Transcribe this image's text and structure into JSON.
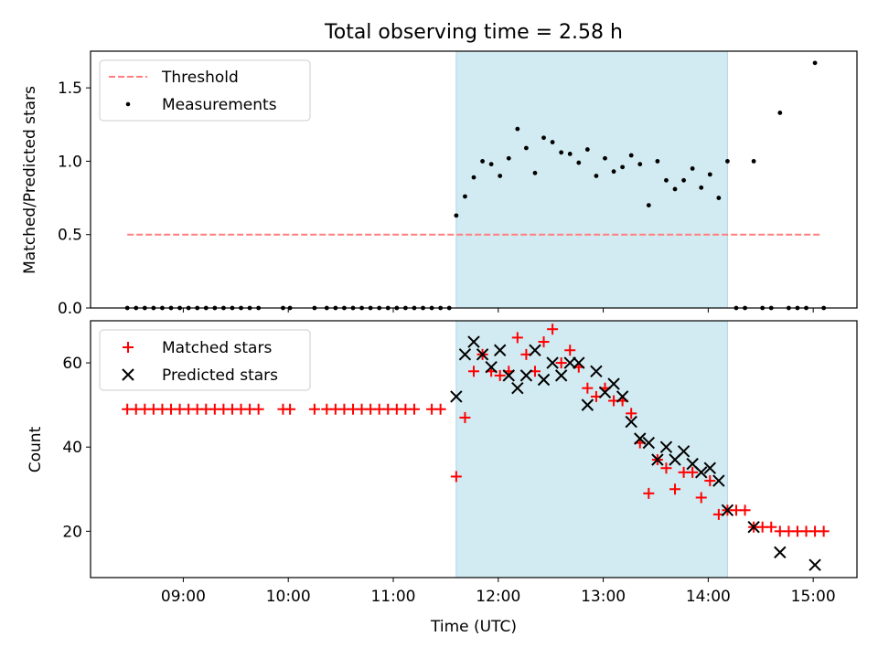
{
  "figure": {
    "title": "Total observing time = 2.58 h",
    "xlabel": "Time (UTC)"
  },
  "chart_data": [
    {
      "type": "scatter",
      "ylabel": "Matched/Predicted stars",
      "ylim": [
        0,
        1.75
      ],
      "xlim": [
        "08:07",
        "15:25"
      ],
      "yticks": [
        0.0,
        0.5,
        1.0,
        1.5
      ],
      "ytick_labels": [
        "0.0",
        "0.5",
        "1.0",
        "1.5"
      ],
      "shaded_interval": [
        "11:36",
        "14:11"
      ],
      "shaded_color": "#add8e6",
      "legend": {
        "position": "upper-left",
        "entries": [
          "Threshold",
          "Measurements"
        ]
      },
      "threshold": {
        "name": "Threshold",
        "value": 0.5,
        "x_range": [
          "08:28",
          "15:04"
        ],
        "color": "#ff7f7f",
        "style": "dashed"
      },
      "series": [
        {
          "name": "Measurements",
          "marker": "dot",
          "color": "#000000",
          "points": [
            [
              "08:28",
              0
            ],
            [
              "08:33",
              0
            ],
            [
              "08:38",
              0
            ],
            [
              "08:43",
              0
            ],
            [
              "08:48",
              0
            ],
            [
              "08:53",
              0
            ],
            [
              "08:58",
              0
            ],
            [
              "09:03",
              0
            ],
            [
              "09:08",
              0
            ],
            [
              "09:13",
              0
            ],
            [
              "09:18",
              0
            ],
            [
              "09:23",
              0
            ],
            [
              "09:28",
              0
            ],
            [
              "09:33",
              0
            ],
            [
              "09:38",
              0
            ],
            [
              "09:43",
              0
            ],
            [
              "09:57",
              0
            ],
            [
              "10:01",
              0
            ],
            [
              "10:15",
              0
            ],
            [
              "10:22",
              0
            ],
            [
              "10:27",
              0
            ],
            [
              "10:32",
              0
            ],
            [
              "10:37",
              0
            ],
            [
              "10:42",
              0
            ],
            [
              "10:47",
              0
            ],
            [
              "10:52",
              0
            ],
            [
              "10:57",
              0
            ],
            [
              "11:02",
              0
            ],
            [
              "11:07",
              0
            ],
            [
              "11:12",
              0
            ],
            [
              "11:17",
              0
            ],
            [
              "11:22",
              0
            ],
            [
              "11:27",
              0
            ],
            [
              "11:32",
              0
            ],
            [
              "11:36",
              0.63
            ],
            [
              "11:41",
              0.76
            ],
            [
              "11:46",
              0.89
            ],
            [
              "11:51",
              1.0
            ],
            [
              "11:56",
              0.98
            ],
            [
              "12:01",
              0.9
            ],
            [
              "12:06",
              1.02
            ],
            [
              "12:11",
              1.22
            ],
            [
              "12:16",
              1.09
            ],
            [
              "12:21",
              0.92
            ],
            [
              "12:26",
              1.16
            ],
            [
              "12:31",
              1.13
            ],
            [
              "12:36",
              1.06
            ],
            [
              "12:41",
              1.05
            ],
            [
              "12:46",
              0.99
            ],
            [
              "12:51",
              1.08
            ],
            [
              "12:56",
              0.9
            ],
            [
              "13:01",
              1.02
            ],
            [
              "13:06",
              0.93
            ],
            [
              "13:11",
              0.96
            ],
            [
              "13:16",
              1.04
            ],
            [
              "13:21",
              0.98
            ],
            [
              "13:26",
              0.7
            ],
            [
              "13:31",
              1.0
            ],
            [
              "13:36",
              0.87
            ],
            [
              "13:41",
              0.81
            ],
            [
              "13:46",
              0.87
            ],
            [
              "13:51",
              0.95
            ],
            [
              "13:56",
              0.82
            ],
            [
              "14:01",
              0.91
            ],
            [
              "14:06",
              0.75
            ],
            [
              "14:11",
              1.0
            ],
            [
              "14:16",
              0
            ],
            [
              "14:21",
              0
            ],
            [
              "14:26",
              1.0
            ],
            [
              "14:31",
              0
            ],
            [
              "14:36",
              0
            ],
            [
              "14:41",
              1.33
            ],
            [
              "14:46",
              0
            ],
            [
              "14:51",
              0
            ],
            [
              "14:56",
              0
            ],
            [
              "15:01",
              1.67
            ],
            [
              "15:06",
              0
            ]
          ]
        }
      ]
    },
    {
      "type": "scatter",
      "ylabel": "Count",
      "ylim": [
        9,
        70
      ],
      "xlim": [
        "08:07",
        "15:25"
      ],
      "yticks": [
        20,
        40,
        60
      ],
      "ytick_labels": [
        "20",
        "40",
        "60"
      ],
      "xticks": [
        "09:00",
        "10:00",
        "11:00",
        "12:00",
        "13:00",
        "14:00",
        "15:00"
      ],
      "xtick_labels": [
        "09:00",
        "10:00",
        "11:00",
        "12:00",
        "13:00",
        "14:00",
        "15:00"
      ],
      "shaded_interval": [
        "11:36",
        "14:11"
      ],
      "shaded_color": "#add8e6",
      "legend": {
        "position": "upper-left",
        "entries": [
          "Matched stars",
          "Predicted stars"
        ]
      },
      "series": [
        {
          "name": "Matched stars",
          "marker": "plus",
          "color": "#ff0000",
          "points": [
            [
              "08:28",
              49
            ],
            [
              "08:33",
              49
            ],
            [
              "08:38",
              49
            ],
            [
              "08:43",
              49
            ],
            [
              "08:48",
              49
            ],
            [
              "08:53",
              49
            ],
            [
              "08:58",
              49
            ],
            [
              "09:03",
              49
            ],
            [
              "09:08",
              49
            ],
            [
              "09:13",
              49
            ],
            [
              "09:18",
              49
            ],
            [
              "09:23",
              49
            ],
            [
              "09:28",
              49
            ],
            [
              "09:33",
              49
            ],
            [
              "09:38",
              49
            ],
            [
              "09:43",
              49
            ],
            [
              "09:57",
              49
            ],
            [
              "10:01",
              49
            ],
            [
              "10:15",
              49
            ],
            [
              "10:22",
              49
            ],
            [
              "10:27",
              49
            ],
            [
              "10:32",
              49
            ],
            [
              "10:37",
              49
            ],
            [
              "10:42",
              49
            ],
            [
              "10:47",
              49
            ],
            [
              "10:52",
              49
            ],
            [
              "10:57",
              49
            ],
            [
              "11:02",
              49
            ],
            [
              "11:07",
              49
            ],
            [
              "11:12",
              49
            ],
            [
              "11:22",
              49
            ],
            [
              "11:27",
              49
            ],
            [
              "11:36",
              33
            ],
            [
              "11:41",
              47
            ],
            [
              "11:46",
              58
            ],
            [
              "11:51",
              62
            ],
            [
              "11:56",
              58
            ],
            [
              "12:01",
              57
            ],
            [
              "12:06",
              58
            ],
            [
              "12:11",
              66
            ],
            [
              "12:16",
              62
            ],
            [
              "12:21",
              58
            ],
            [
              "12:26",
              65
            ],
            [
              "12:31",
              68
            ],
            [
              "12:36",
              60
            ],
            [
              "12:41",
              63
            ],
            [
              "12:46",
              59
            ],
            [
              "12:51",
              54
            ],
            [
              "12:56",
              52
            ],
            [
              "13:01",
              54
            ],
            [
              "13:06",
              51
            ],
            [
              "13:11",
              51
            ],
            [
              "13:16",
              48
            ],
            [
              "13:21",
              41
            ],
            [
              "13:26",
              29
            ],
            [
              "13:31",
              37
            ],
            [
              "13:36",
              35
            ],
            [
              "13:41",
              30
            ],
            [
              "13:46",
              34
            ],
            [
              "13:51",
              34
            ],
            [
              "13:56",
              28
            ],
            [
              "14:01",
              32
            ],
            [
              "14:06",
              24
            ],
            [
              "14:11",
              25
            ],
            [
              "14:16",
              25
            ],
            [
              "14:21",
              25
            ],
            [
              "14:26",
              21
            ],
            [
              "14:31",
              21
            ],
            [
              "14:36",
              21
            ],
            [
              "14:41",
              20
            ],
            [
              "14:46",
              20
            ],
            [
              "14:51",
              20
            ],
            [
              "14:56",
              20
            ],
            [
              "15:01",
              20
            ],
            [
              "15:06",
              20
            ]
          ]
        },
        {
          "name": "Predicted stars",
          "marker": "x",
          "color": "#000000",
          "points": [
            [
              "11:36",
              52
            ],
            [
              "11:41",
              62
            ],
            [
              "11:46",
              65
            ],
            [
              "11:51",
              62
            ],
            [
              "11:56",
              59
            ],
            [
              "12:01",
              63
            ],
            [
              "12:06",
              57
            ],
            [
              "12:11",
              54
            ],
            [
              "12:16",
              57
            ],
            [
              "12:21",
              63
            ],
            [
              "12:26",
              56
            ],
            [
              "12:31",
              60
            ],
            [
              "12:36",
              57
            ],
            [
              "12:41",
              60
            ],
            [
              "12:46",
              60
            ],
            [
              "12:51",
              50
            ],
            [
              "12:56",
              58
            ],
            [
              "13:01",
              53
            ],
            [
              "13:06",
              55
            ],
            [
              "13:11",
              52
            ],
            [
              "13:16",
              46
            ],
            [
              "13:21",
              42
            ],
            [
              "13:26",
              41
            ],
            [
              "13:31",
              37
            ],
            [
              "13:36",
              40
            ],
            [
              "13:41",
              37
            ],
            [
              "13:46",
              39
            ],
            [
              "13:51",
              36
            ],
            [
              "13:56",
              34
            ],
            [
              "14:01",
              35
            ],
            [
              "14:06",
              32
            ],
            [
              "14:11",
              25
            ],
            [
              "14:26",
              21
            ],
            [
              "14:41",
              15
            ],
            [
              "15:01",
              12
            ]
          ]
        }
      ]
    }
  ]
}
